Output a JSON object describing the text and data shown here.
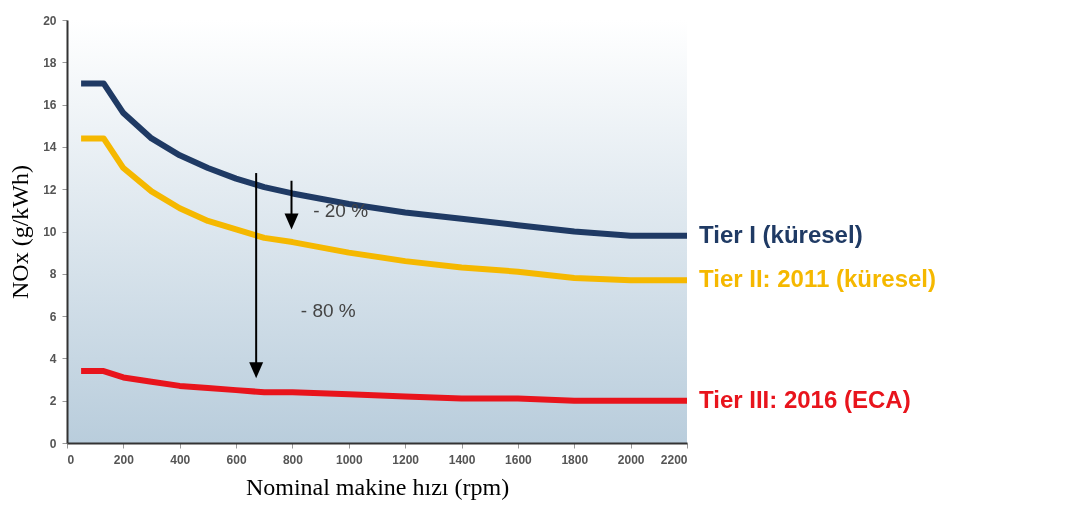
{
  "chart_data": {
    "type": "line",
    "xlabel": "Nominal makine hızı (rpm)",
    "ylabel": "NOx (g/kWh)",
    "x": [
      50,
      130,
      200,
      300,
      400,
      500,
      600,
      700,
      800,
      1000,
      1200,
      1400,
      1600,
      1800,
      2000,
      2200
    ],
    "series": [
      {
        "name": "Tier I (küresel)",
        "color": "#1f3a64",
        "values": [
          17,
          17,
          15.6,
          14.4,
          13.6,
          13.0,
          12.5,
          12.1,
          11.8,
          11.3,
          10.9,
          10.6,
          10.3,
          10.0,
          9.8,
          9.8
        ]
      },
      {
        "name": "Tier II: 2011 (küresel)",
        "color": "#f5b800",
        "values": [
          14.4,
          14.4,
          13.0,
          11.9,
          11.1,
          10.5,
          10.1,
          9.7,
          9.5,
          9.0,
          8.6,
          8.3,
          8.1,
          7.8,
          7.7,
          7.7
        ]
      },
      {
        "name": "Tier III: 2016 (ECA)",
        "color": "#e8141c",
        "values": [
          3.4,
          3.4,
          3.1,
          2.9,
          2.7,
          2.6,
          2.5,
          2.4,
          2.4,
          2.3,
          2.2,
          2.1,
          2.1,
          2.0,
          2.0,
          2.0
        ]
      }
    ],
    "annotations": [
      "- 20 %",
      "- 80 %"
    ],
    "xlim": [
      0,
      2200
    ],
    "xticks": [
      0,
      200,
      400,
      600,
      800,
      1000,
      1200,
      1400,
      1600,
      1800,
      2000,
      2200
    ],
    "ylim": [
      0,
      20
    ],
    "yticks": [
      0,
      2,
      4,
      6,
      8,
      10,
      12,
      14,
      16,
      18,
      20
    ],
    "grid": false,
    "legend": false,
    "marker": "none",
    "line_style": "solid"
  }
}
